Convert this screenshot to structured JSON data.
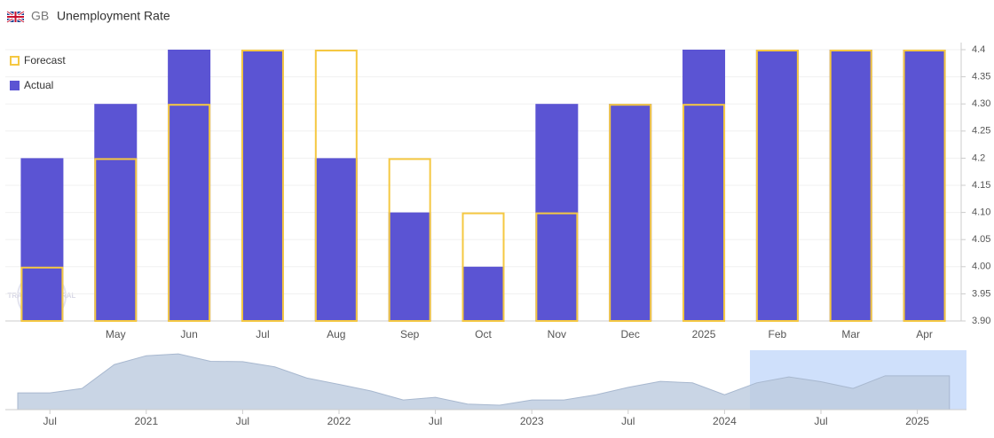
{
  "header": {
    "country": "GB",
    "title": "Unemployment Rate"
  },
  "watermark": "TRADING CENTRAL",
  "chart_data": [
    {
      "type": "bar",
      "categories": [
        null,
        "May",
        "Jun",
        "Jul",
        "Aug",
        "Sep",
        "Oct",
        "Nov",
        "Dec",
        "2025",
        "Feb",
        "Mar",
        "Apr"
      ],
      "series": [
        {
          "name": "Actual",
          "color": "#5b54d3",
          "style": "fill",
          "values": [
            4.2,
            4.3,
            4.4,
            4.4,
            4.2,
            4.1,
            4.0,
            4.3,
            4.3,
            4.4,
            4.4,
            4.4,
            4.4
          ]
        },
        {
          "name": "Forecast",
          "color": "#f5c842",
          "style": "outline",
          "values": [
            4.0,
            4.2,
            4.3,
            4.4,
            4.4,
            4.2,
            4.1,
            4.1,
            4.3,
            4.3,
            4.4,
            4.4,
            4.4
          ]
        }
      ],
      "ylim": [
        3.9,
        4.4
      ],
      "yticks": [
        4.4,
        4.35,
        {
          "value": 4.3,
          "label": "4.30"
        },
        4.25,
        4.2,
        4.15,
        {
          "value": 4.1,
          "label": "4.10"
        },
        4.05,
        {
          "value": 4.0,
          "label": "4.00"
        },
        3.95,
        {
          "value": 3.9,
          "label": "3.90"
        }
      ],
      "legend": "top-left"
    },
    {
      "type": "area",
      "color": "#bccadf",
      "values": [
        4.1,
        4.1,
        4.22,
        4.86,
        5.1,
        5.15,
        4.95,
        4.94,
        4.8,
        4.5,
        4.33,
        4.15,
        3.91,
        3.98,
        3.8,
        3.77,
        3.91,
        3.91,
        4.05,
        4.25,
        4.41,
        4.37,
        4.05,
        4.37,
        4.53,
        4.4,
        4.22,
        4.56,
        4.56,
        4.56
      ],
      "ylim": [
        3.65,
        5.2
      ],
      "xtick_labels": [
        "Jul",
        "2021",
        "Jul",
        "2022",
        "Jul",
        "2023",
        "Jul",
        "2024",
        "Jul",
        "2025"
      ]
    }
  ]
}
